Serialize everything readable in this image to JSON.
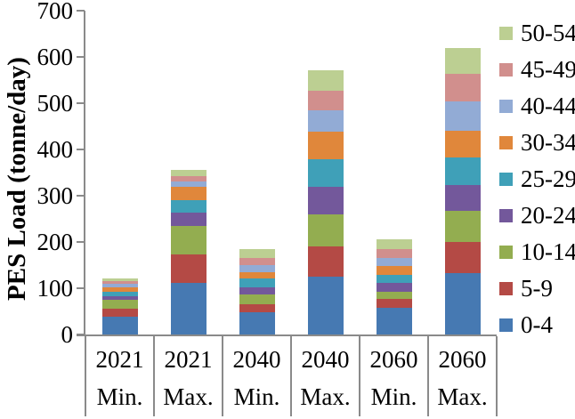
{
  "colors": {
    "axis_line": "#8a8a8a",
    "text": "#000000",
    "background": "#ffffff"
  },
  "chart_data": {
    "type": "bar",
    "stacked": true,
    "title": "",
    "xlabel": "",
    "ylabel": "PES Load (tonne/day)",
    "ylim": [
      0,
      700
    ],
    "yticks": [
      0,
      100,
      200,
      300,
      400,
      500,
      600,
      700
    ],
    "grid": false,
    "legend_position": "right",
    "categories": [
      {
        "year": "2021",
        "scenario": "Min."
      },
      {
        "year": "2021",
        "scenario": "Max."
      },
      {
        "year": "2040",
        "scenario": "Min."
      },
      {
        "year": "2040",
        "scenario": "Max."
      },
      {
        "year": "2060",
        "scenario": "Min."
      },
      {
        "year": "2060",
        "scenario": "Max."
      }
    ],
    "series": [
      {
        "label": "0-4",
        "color": "#4679B2",
        "values": [
          38,
          112,
          48,
          125,
          58,
          132
        ]
      },
      {
        "label": "5-9",
        "color": "#B44A45",
        "values": [
          18,
          61,
          17,
          65,
          18,
          69
        ]
      },
      {
        "label": "10-14",
        "color": "#93AD50",
        "values": [
          18,
          62,
          21,
          69,
          17,
          67
        ]
      },
      {
        "label": "20-24",
        "color": "#73589B",
        "values": [
          9,
          28,
          17,
          61,
          19,
          55
        ]
      },
      {
        "label": "25-29",
        "color": "#3FA0B8",
        "values": [
          10,
          28,
          18,
          58,
          17,
          59
        ]
      },
      {
        "label": "30-34",
        "color": "#E0873B",
        "values": [
          9,
          28,
          14,
          60,
          19,
          58
        ]
      },
      {
        "label": "40-44",
        "color": "#92ABD5",
        "values": [
          7,
          11,
          15,
          47,
          18,
          64
        ]
      },
      {
        "label": "45-49",
        "color": "#D18F8D",
        "values": [
          7,
          12,
          16,
          42,
          18,
          59
        ]
      },
      {
        "label": "50-54",
        "color": "#BCCF92",
        "values": [
          6,
          14,
          19,
          44,
          22,
          57
        ]
      }
    ],
    "legend_labels": [
      "50-54",
      "45-49",
      "40-44",
      "30-34",
      "25-29",
      "20-24",
      "10-14",
      "5-9",
      "0-4"
    ],
    "bar_totals": [
      122,
      356,
      185,
      571,
      206,
      620
    ]
  }
}
